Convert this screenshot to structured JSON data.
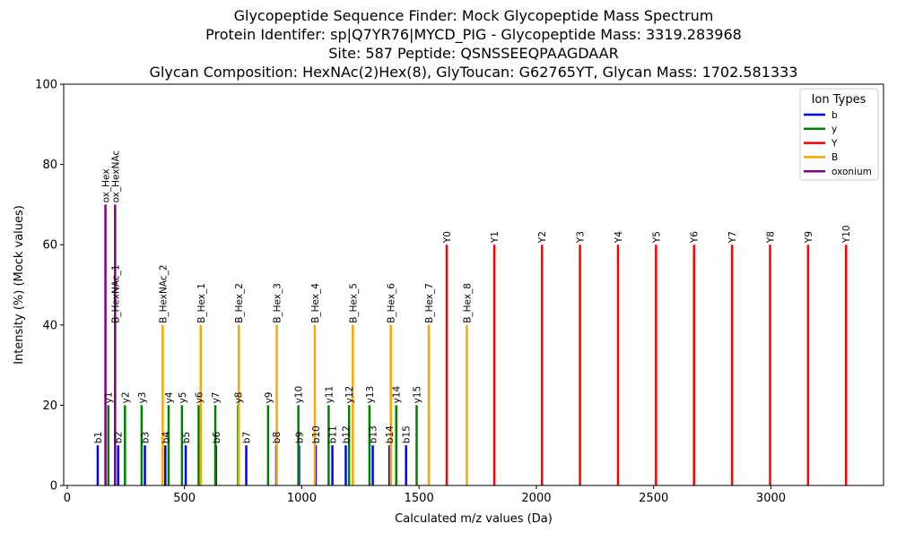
{
  "chart_data": {
    "type": "bar",
    "title_lines": [
      "Glycopeptide Sequence Finder: Mock Glycopeptide Mass Spectrum",
      "Protein Identifer: sp|Q7YR76|MYCD_PIG - Glycopeptide Mass: 3319.283968",
      "Site: 587 Peptide: QSNSSEEQPAAGDAAR",
      "Glycan Composition: HexNAc(2)Hex(8), GlyToucan: G62765YT, Glycan Mass: 1702.581333"
    ],
    "xlabel": "Calculated m/z values (Da)",
    "ylabel": "Intensity (%) (Mock values)",
    "xlim": [
      -15,
      3480
    ],
    "ylim": [
      0,
      100
    ],
    "xticks": [
      0,
      500,
      1000,
      1500,
      2000,
      2500,
      3000
    ],
    "yticks": [
      0,
      20,
      40,
      60,
      80,
      100
    ],
    "grid": false,
    "legend": {
      "title": "Ion Types",
      "placement": "top-right",
      "entries": [
        {
          "name": "b",
          "color": "#0000ff"
        },
        {
          "name": "y",
          "color": "#008000"
        },
        {
          "name": "Y",
          "color": "#ff0000"
        },
        {
          "name": "B",
          "color": "#ffa500"
        },
        {
          "name": "oxonium",
          "color": "#800080"
        }
      ]
    },
    "series": [
      {
        "name": "b",
        "color": "#0000ff",
        "peaks": [
          {
            "label": "b1",
            "x": 130.05,
            "y": 10
          },
          {
            "label": "b2",
            "x": 217.08,
            "y": 10
          },
          {
            "label": "b3",
            "x": 331.12,
            "y": 10
          },
          {
            "label": "b4",
            "x": 418.16,
            "y": 10
          },
          {
            "label": "b5",
            "x": 505.19,
            "y": 10
          },
          {
            "label": "b6",
            "x": 634.23,
            "y": 10
          },
          {
            "label": "b7",
            "x": 763.27,
            "y": 10
          },
          {
            "label": "b8",
            "x": 891.33,
            "y": 10
          },
          {
            "label": "b9",
            "x": 988.39,
            "y": 10
          },
          {
            "label": "b10",
            "x": 1059.42,
            "y": 10
          },
          {
            "label": "b11",
            "x": 1130.46,
            "y": 10
          },
          {
            "label": "b12",
            "x": 1187.48,
            "y": 10
          },
          {
            "label": "b13",
            "x": 1302.51,
            "y": 10
          },
          {
            "label": "b14",
            "x": 1373.55,
            "y": 10
          },
          {
            "label": "b15",
            "x": 1444.58,
            "y": 10
          }
        ]
      },
      {
        "name": "y",
        "color": "#008000",
        "peaks": [
          {
            "label": "y1",
            "x": 175.12,
            "y": 20
          },
          {
            "label": "y2",
            "x": 246.16,
            "y": 20
          },
          {
            "label": "y3",
            "x": 317.19,
            "y": 20
          },
          {
            "label": "y4",
            "x": 432.22,
            "y": 20
          },
          {
            "label": "y5",
            "x": 489.24,
            "y": 20
          },
          {
            "label": "y6",
            "x": 560.28,
            "y": 20
          },
          {
            "label": "y7",
            "x": 631.32,
            "y": 20
          },
          {
            "label": "y8",
            "x": 728.37,
            "y": 20
          },
          {
            "label": "y9",
            "x": 856.43,
            "y": 20
          },
          {
            "label": "y10",
            "x": 985.47,
            "y": 20
          },
          {
            "label": "y11",
            "x": 1114.51,
            "y": 20
          },
          {
            "label": "y12",
            "x": 1201.55,
            "y": 20
          },
          {
            "label": "y13",
            "x": 1288.58,
            "y": 20
          },
          {
            "label": "y14",
            "x": 1402.62,
            "y": 20
          },
          {
            "label": "y15",
            "x": 1489.65,
            "y": 20
          }
        ]
      },
      {
        "name": "Y",
        "color": "#ff0000",
        "peaks": [
          {
            "label": "Y0",
            "x": 1617.7,
            "y": 60
          },
          {
            "label": "Y1",
            "x": 1820.8,
            "y": 60
          },
          {
            "label": "Y2",
            "x": 2023.9,
            "y": 60
          },
          {
            "label": "Y3",
            "x": 2185.9,
            "y": 60
          },
          {
            "label": "Y4",
            "x": 2348.0,
            "y": 60
          },
          {
            "label": "Y5",
            "x": 2510.0,
            "y": 60
          },
          {
            "label": "Y6",
            "x": 2672.1,
            "y": 60
          },
          {
            "label": "Y7",
            "x": 2834.1,
            "y": 60
          },
          {
            "label": "Y8",
            "x": 2996.2,
            "y": 60
          },
          {
            "label": "Y9",
            "x": 3158.2,
            "y": 60
          },
          {
            "label": "Y10",
            "x": 3320.3,
            "y": 60
          }
        ]
      },
      {
        "name": "B",
        "color": "#ffa500",
        "peaks": [
          {
            "label": "B_HexNAc_1",
            "x": 204.09,
            "y": 40
          },
          {
            "label": "B_HexNAc_2",
            "x": 407.17,
            "y": 40
          },
          {
            "label": "B_Hex_1",
            "x": 569.22,
            "y": 40
          },
          {
            "label": "B_Hex_2",
            "x": 731.27,
            "y": 40
          },
          {
            "label": "B_Hex_3",
            "x": 893.33,
            "y": 40
          },
          {
            "label": "B_Hex_4",
            "x": 1055.38,
            "y": 40
          },
          {
            "label": "B_Hex_5",
            "x": 1217.43,
            "y": 40
          },
          {
            "label": "B_Hex_6",
            "x": 1379.48,
            "y": 40
          },
          {
            "label": "B_Hex_7",
            "x": 1541.54,
            "y": 40
          },
          {
            "label": "B_Hex_8",
            "x": 1703.59,
            "y": 40
          }
        ]
      },
      {
        "name": "oxonium",
        "color": "#800080",
        "peaks": [
          {
            "label": "ox_Hex",
            "x": 163.06,
            "y": 70
          },
          {
            "label": "ox_HexNAc",
            "x": 204.09,
            "y": 70
          }
        ]
      }
    ]
  }
}
